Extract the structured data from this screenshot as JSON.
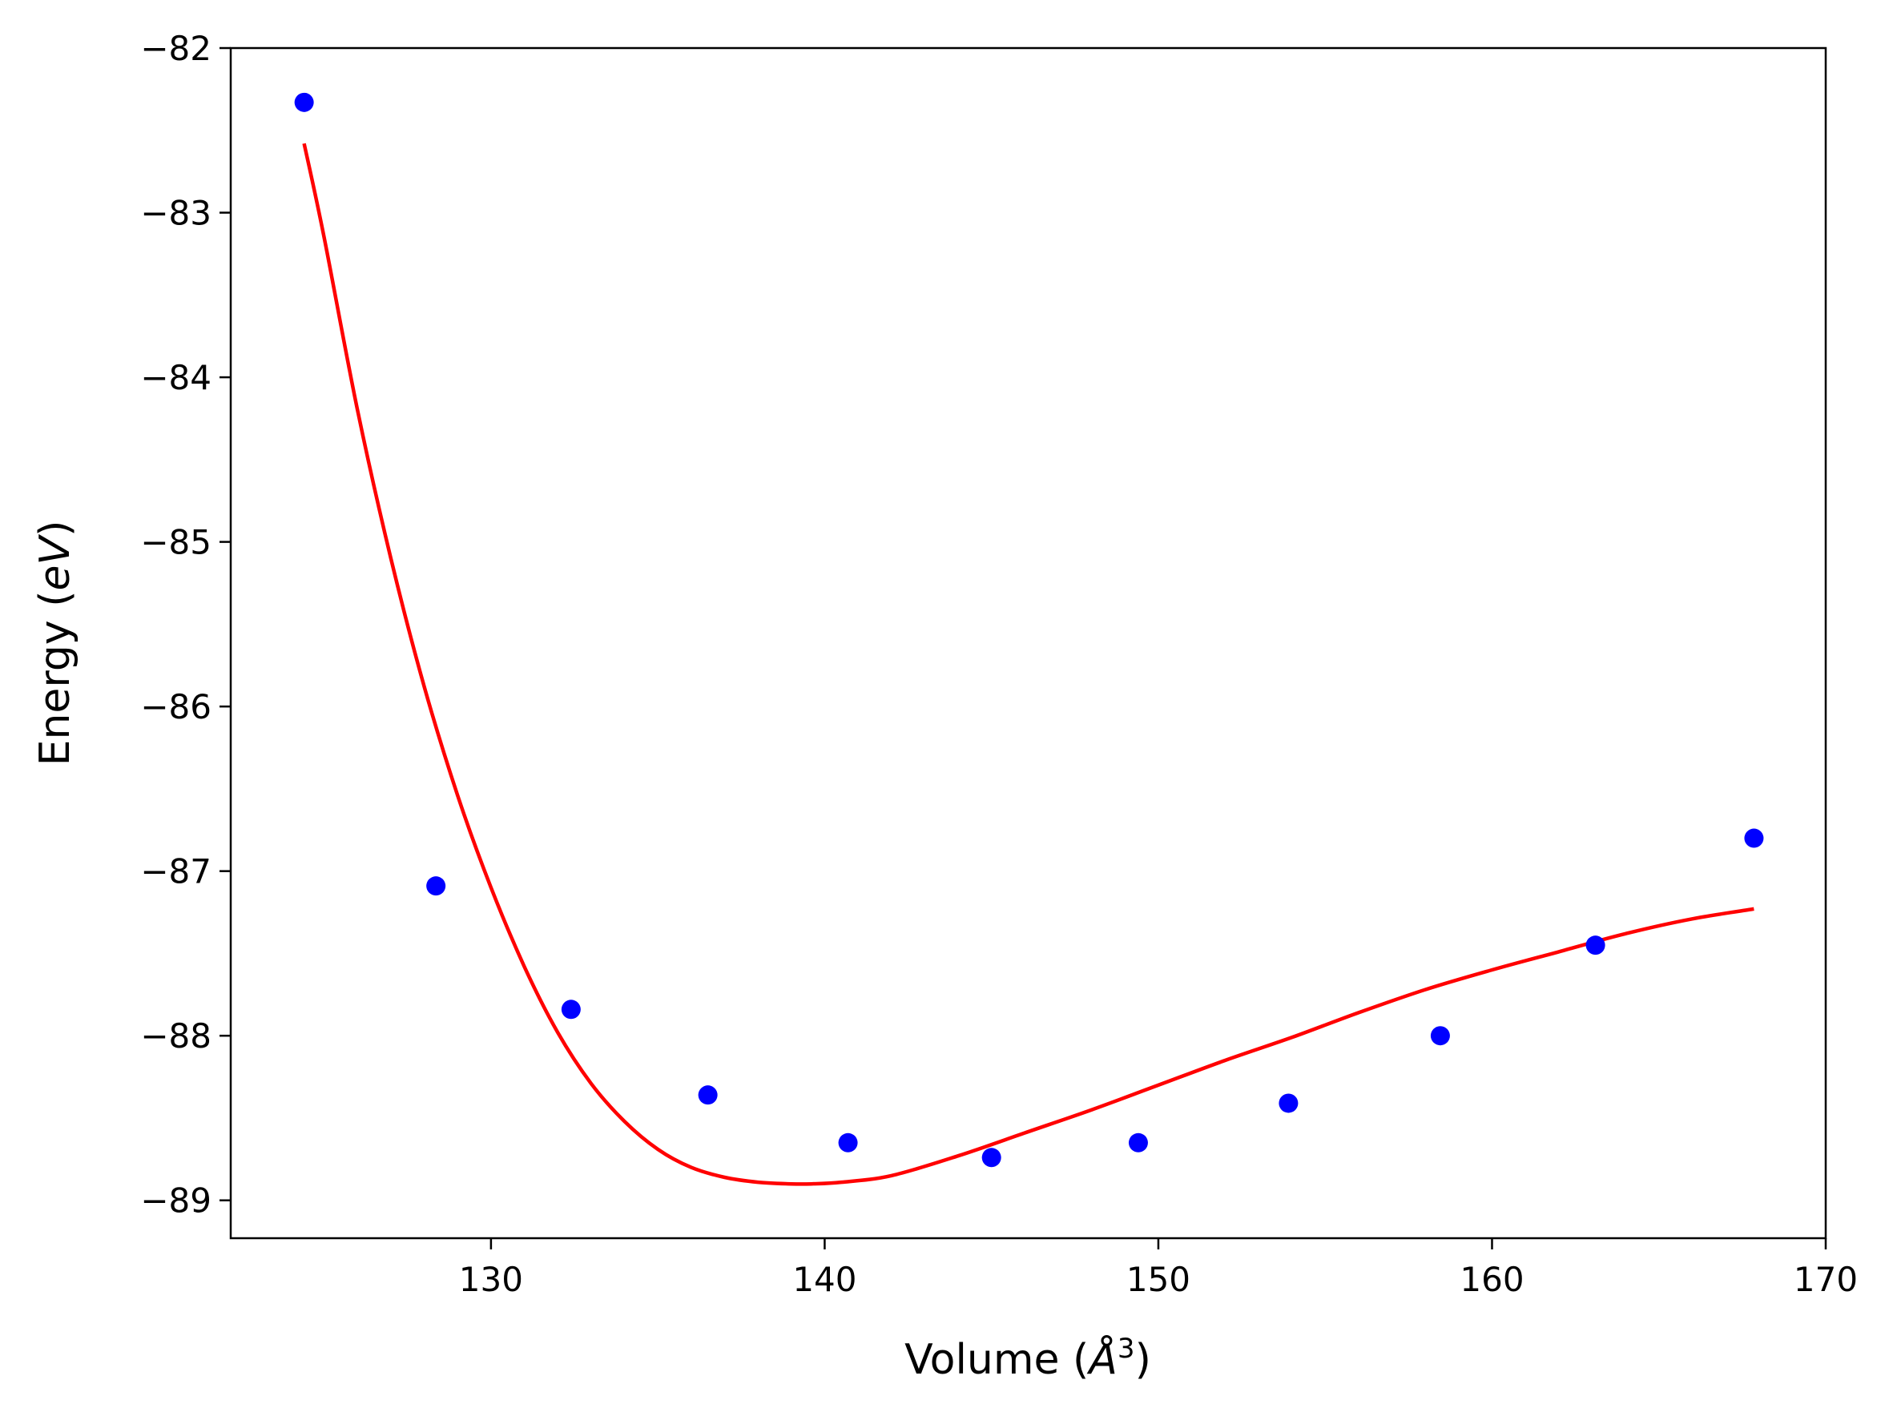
{
  "chart_data": {
    "type": "scatter",
    "title": "",
    "xlabel": "Volume (",
    "xlabel_symbol": "Å",
    "xlabel_exponent": "3",
    "xlabel_suffix": ")",
    "ylabel": "Energy (",
    "ylabel_unit": "eV",
    "ylabel_suffix": ")",
    "xlim": [
      122.2,
      170.0
    ],
    "ylim": [
      -89.23,
      -82.0
    ],
    "x_ticks": [
      130,
      140,
      150,
      160,
      170
    ],
    "x_tick_labels": [
      "130",
      "140",
      "150",
      "160",
      "170"
    ],
    "y_ticks": [
      -82,
      -83,
      -84,
      -85,
      -86,
      -87,
      -88,
      -89
    ],
    "y_tick_labels": [
      "−82",
      "−83",
      "−84",
      "−85",
      "−86",
      "−87",
      "−88",
      "−89"
    ],
    "grid": false,
    "legend": "none",
    "series": [
      {
        "kind": "points",
        "color": "#0000ff",
        "x": [
          124.4,
          128.35,
          132.4,
          136.5,
          140.7,
          145.0,
          149.4,
          153.9,
          158.45,
          163.1,
          167.85
        ],
        "y": [
          -82.33,
          -87.09,
          -87.84,
          -88.36,
          -88.65,
          -88.74,
          -88.65,
          -88.41,
          -88.0,
          -87.45,
          -86.8
        ]
      },
      {
        "kind": "fit-curve",
        "color": "#ff0000",
        "x": [
          124.4,
          125.0,
          126.0,
          127.0,
          128.0,
          129.0,
          130.0,
          131.0,
          132.0,
          133.0,
          134.0,
          135.0,
          136.0,
          137.0,
          138.0,
          139.0,
          139.6,
          140.5,
          142.0,
          144.0,
          146.0,
          148.0,
          150.0,
          152.0,
          154.0,
          156.0,
          158.0,
          160.0,
          162.0,
          164.0,
          166.0,
          167.85
        ],
        "y": [
          -82.58,
          -83.15,
          -84.2,
          -85.1,
          -85.88,
          -86.54,
          -87.1,
          -87.58,
          -87.98,
          -88.29,
          -88.52,
          -88.69,
          -88.8,
          -88.86,
          -88.89,
          -88.9,
          -88.9,
          -88.89,
          -88.85,
          -88.73,
          -88.59,
          -88.45,
          -88.3,
          -88.15,
          -88.01,
          -87.86,
          -87.72,
          -87.6,
          -87.49,
          -87.38,
          -87.29,
          -87.23
        ]
      }
    ]
  }
}
